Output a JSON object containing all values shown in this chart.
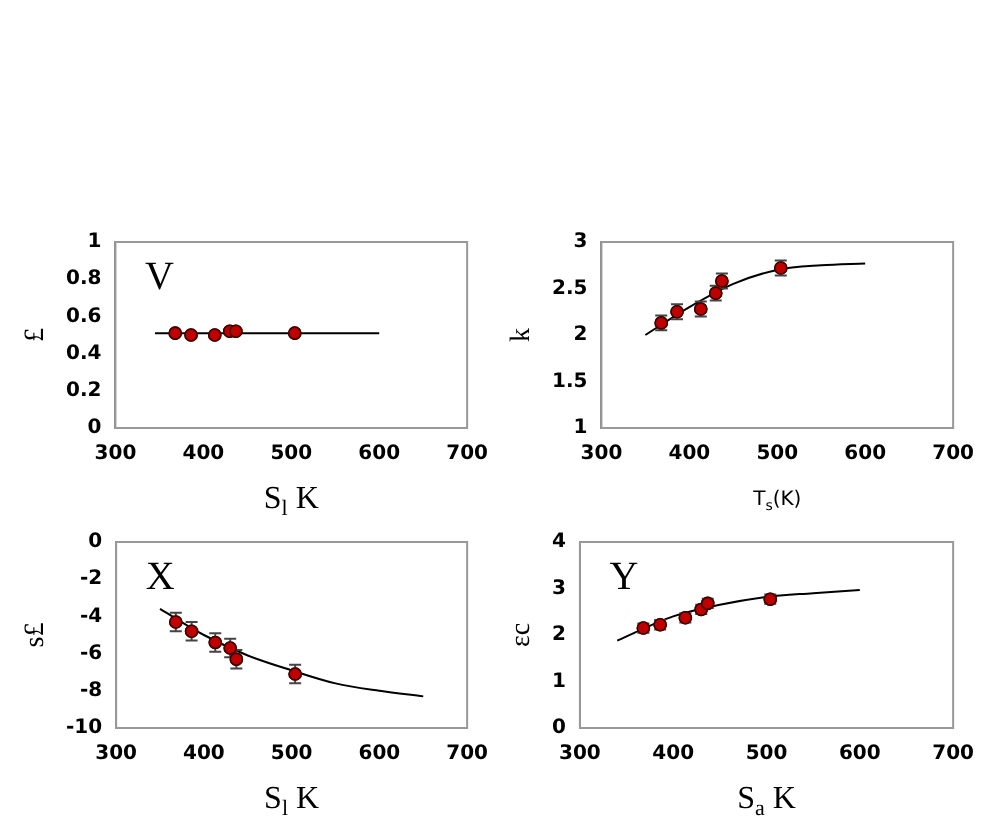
{
  "chart_data": [
    {
      "type": "scatter",
      "annotations": [
        "V"
      ],
      "ylabel": "£",
      "xlabel": "S$_{l}$ K",
      "xlim": [
        300,
        700
      ],
      "xticks": [
        300,
        400,
        500,
        600,
        700
      ],
      "ylim": [
        0,
        1
      ],
      "yticks": [
        0,
        0.2,
        0.4,
        0.6,
        0.8,
        1
      ],
      "grid": false,
      "legend": false,
      "x": [
        368,
        386,
        413,
        430,
        437,
        504
      ],
      "series": [
        {
          "marker": "circle",
          "color": "#c00000",
          "values": [
            0.51,
            0.5,
            0.5,
            0.52,
            0.52,
            0.51
          ],
          "errors": [
            0.01,
            0.01,
            0.01,
            0.01,
            0.01,
            0.01
          ]
        },
        {
          "type": "line",
          "marker": "none",
          "color": "#000000",
          "x": [
            345,
            600
          ],
          "values": [
            0.51,
            0.51
          ]
        }
      ]
    },
    {
      "type": "scatter",
      "ylabel": "k",
      "xlabel": "T$_{s}$(K)",
      "xlim": [
        300,
        700
      ],
      "xticks": [
        300,
        400,
        500,
        600,
        700
      ],
      "ylim": [
        1,
        3
      ],
      "yticks": [
        1,
        1.5,
        2,
        2.5,
        3
      ],
      "grid": false,
      "legend": false,
      "x": [
        368,
        386,
        413,
        430,
        437,
        504
      ],
      "series": [
        {
          "marker": "circle",
          "color": "#c00000",
          "values": [
            2.13,
            2.25,
            2.28,
            2.45,
            2.58,
            2.72
          ],
          "errors": [
            0.08,
            0.08,
            0.08,
            0.08,
            0.08,
            0.08
          ]
        },
        {
          "type": "line",
          "marker": "none",
          "color": "#000000",
          "x": [
            350,
            400,
            450,
            500,
            550,
            600
          ],
          "values": [
            2.0,
            2.3,
            2.55,
            2.7,
            2.75,
            2.77
          ]
        }
      ]
    },
    {
      "type": "scatter",
      "annotations": [
        "X"
      ],
      "ylabel": "s£",
      "xlabel": "S$_{l}$ K",
      "xlim": [
        300,
        700
      ],
      "xticks": [
        300,
        400,
        500,
        600,
        700
      ],
      "ylim": [
        -10,
        0
      ],
      "yticks": [
        -10,
        -8,
        -6,
        -4,
        -2,
        0
      ],
      "grid": false,
      "legend": false,
      "x": [
        368,
        386,
        413,
        430,
        437,
        504
      ],
      "series": [
        {
          "marker": "circle",
          "color": "#c00000",
          "values": [
            -4.3,
            -4.8,
            -5.4,
            -5.7,
            -6.3,
            -7.1
          ],
          "errors": [
            0.5,
            0.5,
            0.5,
            0.5,
            0.5,
            0.5
          ]
        },
        {
          "type": "line",
          "marker": "none",
          "color": "#000000",
          "x": [
            350,
            400,
            450,
            500,
            550,
            600,
            650
          ],
          "values": [
            -3.6,
            -5.0,
            -6.1,
            -6.9,
            -7.6,
            -8.0,
            -8.3
          ]
        }
      ]
    },
    {
      "type": "scatter",
      "annotations": [
        "Y"
      ],
      "ylabel": "εc",
      "xlabel": "S$_{a}$ K",
      "xlim": [
        300,
        700
      ],
      "xticks": [
        300,
        400,
        500,
        600,
        700
      ],
      "ylim": [
        0,
        4
      ],
      "yticks": [
        0,
        1,
        2,
        3,
        4
      ],
      "grid": false,
      "legend": false,
      "x": [
        368,
        386,
        413,
        430,
        437,
        504
      ],
      "series": [
        {
          "marker": "circle",
          "color": "#c00000",
          "values": [
            2.15,
            2.22,
            2.37,
            2.55,
            2.68,
            2.77
          ],
          "errors": [
            0.1,
            0.1,
            0.1,
            0.1,
            0.1,
            0.1
          ]
        },
        {
          "type": "line",
          "marker": "none",
          "color": "#000000",
          "x": [
            340,
            400,
            450,
            500,
            550,
            600
          ],
          "values": [
            1.88,
            2.4,
            2.65,
            2.82,
            2.9,
            2.97
          ]
        }
      ]
    }
  ]
}
